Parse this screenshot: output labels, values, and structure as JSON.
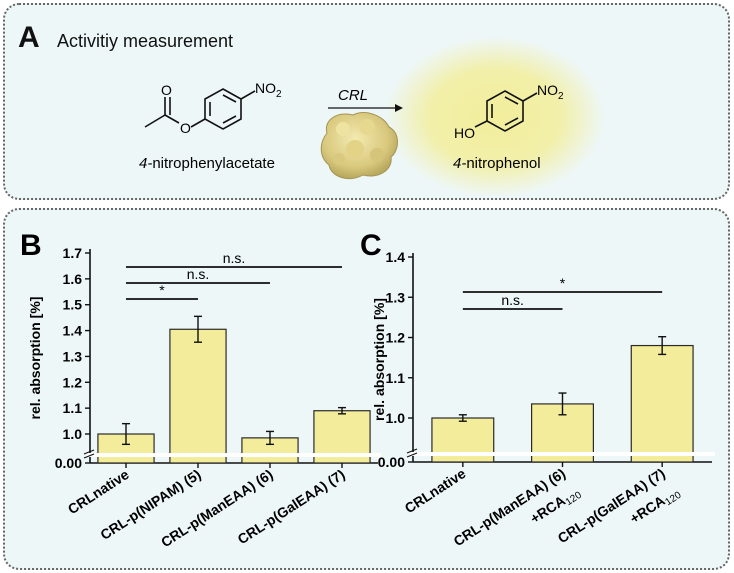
{
  "panel_a": {
    "letter": "A",
    "title": "Activitiy measurement",
    "reactant_label": "nitrophenylacetate",
    "product_label": "nitrophenol",
    "locant": "4-",
    "enzyme": "CRL",
    "no2": "NO",
    "sub2": "2",
    "ho": "HO"
  },
  "colors": {
    "bar_fill": "#f3ec9b",
    "bar_stroke": "#2a2a2a",
    "panel_bg": "#eef7f7",
    "glow": "#efeb9a"
  },
  "chart_data": [
    {
      "id": "B",
      "letter": "B",
      "type": "bar",
      "categories": [
        "CRLnative",
        "CRL-p(NIPAM) (5)",
        "CRL-p(ManEAA) (6)",
        "CRL-p(GalEAA) (7)"
      ],
      "values": [
        1.0,
        1.405,
        0.985,
        1.09
      ],
      "errors": [
        0.04,
        0.05,
        0.025,
        0.012
      ],
      "ylabel": "rel. absorption [%]",
      "yticks": [
        "0.00",
        "1.0",
        "1.1",
        "1.2",
        "1.3",
        "1.4",
        "1.5",
        "1.6",
        "1.7"
      ],
      "ylim": [
        0.9,
        1.7
      ],
      "axis_break": true,
      "significance": [
        {
          "from": 0,
          "to": 3,
          "label": "n.s."
        },
        {
          "from": 0,
          "to": 2,
          "label": "n.s."
        },
        {
          "from": 0,
          "to": 1,
          "label": "*"
        }
      ]
    },
    {
      "id": "C",
      "letter": "C",
      "type": "bar",
      "categories": [
        "CRLnative",
        "CRL-p(ManEAA) (6)",
        "CRL-p(GalEAA) (7)"
      ],
      "category_suffix": [
        "",
        "+RCA",
        "+RCA"
      ],
      "suffix_sub": "120",
      "values": [
        1.0,
        1.035,
        1.18
      ],
      "errors": [
        0.008,
        0.027,
        0.022
      ],
      "ylabel": "rel. absorption [%]",
      "yticks": [
        "0.00",
        "1.0",
        "1.1",
        "1.2",
        "1.3",
        "1.4"
      ],
      "ylim": [
        0.9,
        1.4
      ],
      "axis_break": true,
      "significance": [
        {
          "from": 0,
          "to": 2,
          "label": "*"
        },
        {
          "from": 0,
          "to": 1,
          "label": "n.s."
        }
      ]
    }
  ]
}
